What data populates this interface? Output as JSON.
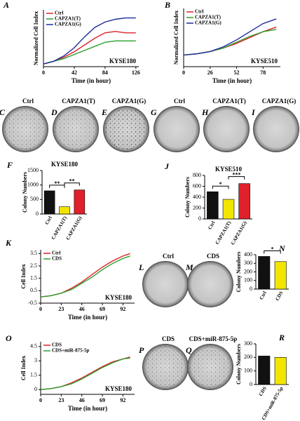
{
  "chart_data": [
    {
      "type": "line",
      "panel": "A",
      "title": "KYSE180",
      "ylabel": "Normalized Cell Index",
      "xlabel": "Time (in hour)",
      "x": [
        0,
        14,
        28,
        42,
        56,
        70,
        84,
        98,
        112,
        126
      ],
      "xlim": [
        0,
        130
      ],
      "xticks": [
        0,
        42,
        84,
        126
      ],
      "ylim": [
        0,
        4.2
      ],
      "series": [
        {
          "name": "Ctrl",
          "color": "#e0202a",
          "values": [
            0.2,
            0.4,
            0.7,
            1.1,
            1.6,
            2.1,
            2.5,
            2.6,
            2.5,
            2.5
          ]
        },
        {
          "name": "CAPZA1(T)",
          "color": "#2aa02a",
          "values": [
            0.2,
            0.4,
            0.6,
            0.9,
            1.2,
            1.5,
            1.8,
            1.9,
            1.9,
            1.9
          ]
        },
        {
          "name": "CAPZA1(G)",
          "color": "#1f2a9a",
          "values": [
            0.2,
            0.4,
            0.8,
            1.4,
            2.2,
            2.9,
            3.3,
            3.5,
            3.6,
            3.6
          ]
        }
      ]
    },
    {
      "type": "line",
      "panel": "B",
      "title": "KYSE510",
      "ylabel": "Normalized Cell Index",
      "xlabel": "Time (in hour)",
      "x": [
        0,
        13,
        26,
        39,
        52,
        65,
        78,
        91
      ],
      "xlim": [
        0,
        95
      ],
      "xticks": [
        0,
        26,
        52,
        78
      ],
      "ylim": [
        0,
        5
      ],
      "series": [
        {
          "name": "Ctrl",
          "color": "#e0202a",
          "values": [
            1,
            1.1,
            1.3,
            1.6,
            2.0,
            2.5,
            3.0,
            3.4
          ]
        },
        {
          "name": "CAPZA1(T)",
          "color": "#2aa02a",
          "values": [
            1,
            1.1,
            1.3,
            1.6,
            2.1,
            2.6,
            3.0,
            3.2
          ]
        },
        {
          "name": "CAPZA1(G)",
          "color": "#1f2a9a",
          "values": [
            1,
            1.1,
            1.3,
            1.7,
            2.3,
            3.0,
            3.7,
            4.1
          ]
        }
      ]
    },
    {
      "type": "bar",
      "panel": "F",
      "title": "KYSE180",
      "ylabel": "Colony Numbers",
      "categories": [
        "Ctrl",
        "CAPZA1(T)",
        "CAPZA1(G)"
      ],
      "values": [
        800,
        250,
        830
      ],
      "colors": [
        "#111111",
        "#f2e600",
        "#e0202a"
      ],
      "ylim": [
        0,
        1500
      ],
      "yticks": [
        0,
        500,
        1000,
        1500
      ],
      "annotations": [
        "**",
        "**"
      ]
    },
    {
      "type": "bar",
      "panel": "J",
      "title": "KYSE510",
      "ylabel": "Colony Numbers",
      "categories": [
        "Ctrl",
        "CAPZA1(T)",
        "CAPZA1(G)"
      ],
      "values": [
        500,
        360,
        650
      ],
      "colors": [
        "#111111",
        "#f2e600",
        "#e0202a"
      ],
      "ylim": [
        0,
        800
      ],
      "yticks": [
        0,
        200,
        400,
        600,
        800
      ],
      "annotations": [
        "*",
        "***"
      ]
    },
    {
      "type": "line",
      "panel": "K",
      "title": "KYSE180",
      "ylabel": "Cell Index",
      "xlabel": "Time (in hour)",
      "x": [
        0,
        11.5,
        23,
        34.5,
        46,
        57.5,
        69,
        80.5,
        92,
        100
      ],
      "xlim": [
        0,
        105
      ],
      "xticks": [
        0,
        23,
        46,
        69,
        92
      ],
      "ylim": [
        -0.5,
        3.8
      ],
      "yticks": [
        -0.5,
        0.5,
        1.5,
        2.5,
        3.5
      ],
      "series": [
        {
          "name": "Ctrl",
          "color": "#e0202a",
          "values": [
            0,
            0.1,
            0.3,
            0.7,
            1.2,
            1.8,
            2.4,
            2.9,
            3.3,
            3.5
          ]
        },
        {
          "name": "CDS",
          "color": "#2aa02a",
          "values": [
            0,
            0.1,
            0.3,
            0.6,
            1.1,
            1.6,
            2.2,
            2.7,
            3.1,
            3.3
          ]
        }
      ]
    },
    {
      "type": "bar",
      "panel": "N",
      "ylabel": "Colony Numbers",
      "categories": [
        "Ctrl",
        "CDS"
      ],
      "values": [
        380,
        320
      ],
      "colors": [
        "#111111",
        "#f2e600"
      ],
      "ylim": [
        0,
        400
      ],
      "yticks": [
        0,
        100,
        200,
        300,
        400
      ],
      "annotations": [
        "*"
      ]
    },
    {
      "type": "line",
      "panel": "O",
      "title": "KYSE180",
      "ylabel": "Cell Index",
      "xlabel": "Time (in hour)",
      "x": [
        0,
        11.5,
        23,
        34.5,
        46,
        57.5,
        69,
        80.5,
        92,
        100
      ],
      "xlim": [
        0,
        105
      ],
      "xticks": [
        0,
        23,
        46,
        69,
        92
      ],
      "ylim": [
        -0.5,
        5
      ],
      "yticks": [
        0,
        1.5,
        3,
        4.5
      ],
      "series": [
        {
          "name": "CDS",
          "color": "#e0202a",
          "values": [
            0,
            0.1,
            0.3,
            0.7,
            1.2,
            1.8,
            2.4,
            2.9,
            3.2,
            3.4
          ]
        },
        {
          "name": "CDS+miR-875-5p",
          "color": "#2aa02a",
          "values": [
            0,
            0.1,
            0.3,
            0.6,
            1.1,
            1.7,
            2.3,
            2.8,
            3.2,
            3.3
          ]
        }
      ]
    },
    {
      "type": "bar",
      "panel": "R",
      "ylabel": "Colony Numbers",
      "categories": [
        "CDS",
        "CDS+miR-875-5p"
      ],
      "values": [
        210,
        200
      ],
      "colors": [
        "#111111",
        "#f2e600"
      ],
      "ylim": [
        0,
        300
      ],
      "yticks": [
        0,
        100,
        200,
        300
      ]
    }
  ],
  "images": [
    {
      "panel": "C",
      "label": "Ctrl"
    },
    {
      "panel": "D",
      "label": "CAPZA1(T)"
    },
    {
      "panel": "E",
      "label": "CAPZA1(G)"
    },
    {
      "panel": "G",
      "label": "Ctrl"
    },
    {
      "panel": "H",
      "label": "CAPZA1(T)"
    },
    {
      "panel": "I",
      "label": "CAPZA1(G)"
    },
    {
      "panel": "L",
      "label": "Ctrl"
    },
    {
      "panel": "M",
      "label": "CDS"
    },
    {
      "panel": "P",
      "label": "CDS"
    },
    {
      "panel": "Q",
      "label": "CDS+miR-875-5p"
    }
  ]
}
